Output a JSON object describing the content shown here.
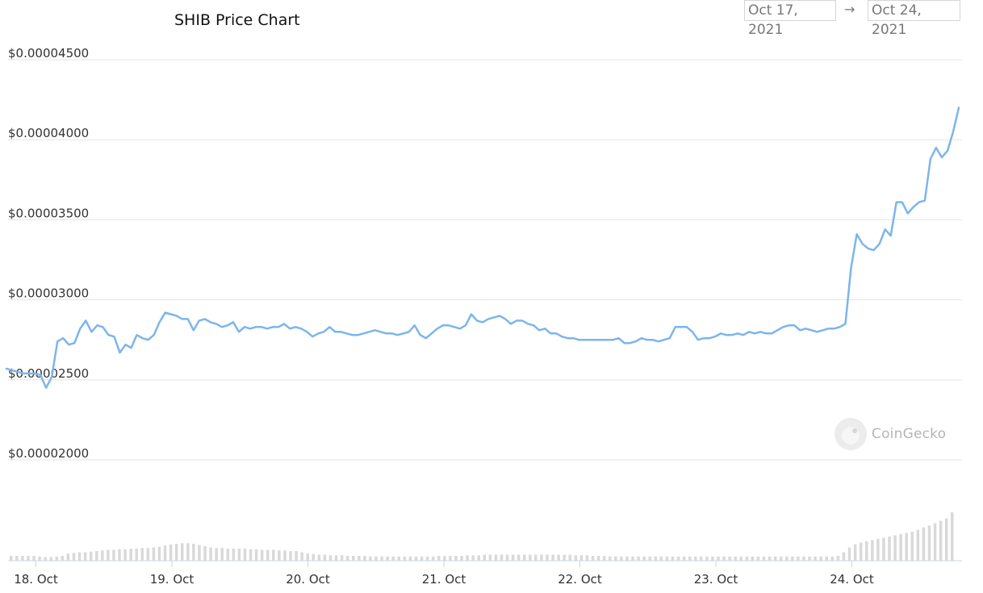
{
  "header": {
    "title": "SHIB Price Chart",
    "range_start": "Oct 17, 2021",
    "range_arrow": "→",
    "range_end": "Oct 24, 2021"
  },
  "watermark": {
    "text": "CoinGecko",
    "icon": "coingecko-logo-icon"
  },
  "colors": {
    "line": "#7cb5ec",
    "grid": "#e6e6e6",
    "volume": "#d9d9d9",
    "axis_text": "#333333"
  },
  "chart_data": {
    "type": "line",
    "title": "SHIB Price Chart",
    "xlabel": "",
    "ylabel": "",
    "y_ticks": [
      2e-05,
      2.5e-05,
      3e-05,
      3.5e-05,
      4e-05,
      4.5e-05
    ],
    "y_tick_labels": [
      "$0.00002000",
      "$0.00002500",
      "$0.00003000",
      "$0.00003500",
      "$0.00004000",
      "$0.00004500"
    ],
    "x_tick_labels": [
      "18. Oct",
      "19. Oct",
      "20. Oct",
      "21. Oct",
      "22. Oct",
      "23. Oct",
      "24. Oct"
    ],
    "x_ticks_day": [
      1,
      2,
      3,
      4,
      5,
      6,
      7
    ],
    "grid": true,
    "series": [
      {
        "points": [
          [
            0.0,
            2.57e-05
          ],
          [
            0.04,
            2.56e-05
          ],
          [
            0.08,
            2.55e-05
          ],
          [
            0.12,
            2.54e-05
          ],
          [
            0.16,
            2.54e-05
          ],
          [
            0.2,
            2.54e-05
          ],
          [
            0.24,
            2.53e-05
          ],
          [
            0.28,
            2.45e-05
          ],
          [
            0.32,
            2.52e-05
          ],
          [
            0.36,
            2.74e-05
          ],
          [
            0.4,
            2.76e-05
          ],
          [
            0.44,
            2.72e-05
          ],
          [
            0.48,
            2.73e-05
          ],
          [
            0.52,
            2.82e-05
          ],
          [
            0.56,
            2.87e-05
          ],
          [
            0.6,
            2.8e-05
          ],
          [
            0.64,
            2.84e-05
          ],
          [
            0.68,
            2.83e-05
          ],
          [
            0.72,
            2.78e-05
          ],
          [
            0.76,
            2.77e-05
          ],
          [
            0.8,
            2.67e-05
          ],
          [
            0.84,
            2.72e-05
          ],
          [
            0.88,
            2.7e-05
          ],
          [
            0.92,
            2.78e-05
          ],
          [
            0.96,
            2.76e-05
          ],
          [
            1.0,
            2.75e-05
          ],
          [
            1.04,
            2.78e-05
          ],
          [
            1.08,
            2.86e-05
          ],
          [
            1.12,
            2.92e-05
          ],
          [
            1.16,
            2.91e-05
          ],
          [
            1.2,
            2.9e-05
          ],
          [
            1.24,
            2.88e-05
          ],
          [
            1.28,
            2.88e-05
          ],
          [
            1.32,
            2.81e-05
          ],
          [
            1.36,
            2.87e-05
          ],
          [
            1.4,
            2.88e-05
          ],
          [
            1.44,
            2.86e-05
          ],
          [
            1.48,
            2.85e-05
          ],
          [
            1.52,
            2.83e-05
          ],
          [
            1.56,
            2.84e-05
          ],
          [
            1.6,
            2.86e-05
          ],
          [
            1.64,
            2.8e-05
          ],
          [
            1.68,
            2.83e-05
          ],
          [
            1.72,
            2.82e-05
          ],
          [
            1.76,
            2.83e-05
          ],
          [
            1.8,
            2.83e-05
          ],
          [
            1.84,
            2.82e-05
          ],
          [
            1.88,
            2.83e-05
          ],
          [
            1.92,
            2.83e-05
          ],
          [
            1.96,
            2.85e-05
          ],
          [
            2.0,
            2.82e-05
          ],
          [
            2.04,
            2.83e-05
          ],
          [
            2.08,
            2.82e-05
          ],
          [
            2.12,
            2.8e-05
          ],
          [
            2.16,
            2.77e-05
          ],
          [
            2.2,
            2.79e-05
          ],
          [
            2.24,
            2.8e-05
          ],
          [
            2.28,
            2.83e-05
          ],
          [
            2.32,
            2.8e-05
          ],
          [
            2.36,
            2.8e-05
          ],
          [
            2.4,
            2.79e-05
          ],
          [
            2.44,
            2.78e-05
          ],
          [
            2.48,
            2.78e-05
          ],
          [
            2.52,
            2.79e-05
          ],
          [
            2.56,
            2.8e-05
          ],
          [
            2.6,
            2.81e-05
          ],
          [
            2.64,
            2.8e-05
          ],
          [
            2.68,
            2.79e-05
          ],
          [
            2.72,
            2.79e-05
          ],
          [
            2.76,
            2.78e-05
          ],
          [
            2.8,
            2.79e-05
          ],
          [
            2.84,
            2.8e-05
          ],
          [
            2.88,
            2.84e-05
          ],
          [
            2.92,
            2.78e-05
          ],
          [
            2.96,
            2.76e-05
          ],
          [
            3.0,
            2.79e-05
          ],
          [
            3.04,
            2.82e-05
          ],
          [
            3.08,
            2.84e-05
          ],
          [
            3.12,
            2.84e-05
          ],
          [
            3.16,
            2.83e-05
          ],
          [
            3.2,
            2.82e-05
          ],
          [
            3.24,
            2.84e-05
          ],
          [
            3.28,
            2.91e-05
          ],
          [
            3.32,
            2.87e-05
          ],
          [
            3.36,
            2.86e-05
          ],
          [
            3.4,
            2.88e-05
          ],
          [
            3.44,
            2.89e-05
          ],
          [
            3.48,
            2.9e-05
          ],
          [
            3.52,
            2.88e-05
          ],
          [
            3.56,
            2.85e-05
          ],
          [
            3.6,
            2.87e-05
          ],
          [
            3.64,
            2.87e-05
          ],
          [
            3.68,
            2.85e-05
          ],
          [
            3.72,
            2.84e-05
          ],
          [
            3.76,
            2.81e-05
          ],
          [
            3.8,
            2.82e-05
          ],
          [
            3.84,
            2.79e-05
          ],
          [
            3.88,
            2.79e-05
          ],
          [
            3.92,
            2.77e-05
          ],
          [
            3.96,
            2.76e-05
          ],
          [
            4.0,
            2.76e-05
          ],
          [
            4.04,
            2.75e-05
          ],
          [
            4.08,
            2.75e-05
          ],
          [
            4.12,
            2.75e-05
          ],
          [
            4.16,
            2.75e-05
          ],
          [
            4.2,
            2.75e-05
          ],
          [
            4.24,
            2.75e-05
          ],
          [
            4.28,
            2.75e-05
          ],
          [
            4.32,
            2.76e-05
          ],
          [
            4.36,
            2.73e-05
          ],
          [
            4.4,
            2.73e-05
          ],
          [
            4.44,
            2.74e-05
          ],
          [
            4.48,
            2.76e-05
          ],
          [
            4.52,
            2.75e-05
          ],
          [
            4.56,
            2.75e-05
          ],
          [
            4.6,
            2.74e-05
          ],
          [
            4.64,
            2.75e-05
          ],
          [
            4.68,
            2.76e-05
          ],
          [
            4.72,
            2.83e-05
          ],
          [
            4.76,
            2.83e-05
          ],
          [
            4.8,
            2.83e-05
          ],
          [
            4.84,
            2.8e-05
          ],
          [
            4.88,
            2.75e-05
          ],
          [
            4.92,
            2.76e-05
          ],
          [
            4.96,
            2.76e-05
          ],
          [
            5.0,
            2.77e-05
          ],
          [
            5.04,
            2.79e-05
          ],
          [
            5.08,
            2.78e-05
          ],
          [
            5.12,
            2.78e-05
          ],
          [
            5.16,
            2.79e-05
          ],
          [
            5.2,
            2.78e-05
          ],
          [
            5.24,
            2.8e-05
          ],
          [
            5.28,
            2.79e-05
          ],
          [
            5.32,
            2.8e-05
          ],
          [
            5.36,
            2.79e-05
          ],
          [
            5.4,
            2.79e-05
          ],
          [
            5.44,
            2.81e-05
          ],
          [
            5.48,
            2.83e-05
          ],
          [
            5.52,
            2.84e-05
          ],
          [
            5.56,
            2.84e-05
          ],
          [
            5.6,
            2.81e-05
          ],
          [
            5.64,
            2.82e-05
          ],
          [
            5.68,
            2.81e-05
          ],
          [
            5.72,
            2.8e-05
          ],
          [
            5.76,
            2.81e-05
          ],
          [
            5.8,
            2.82e-05
          ],
          [
            5.84,
            2.82e-05
          ],
          [
            5.88,
            2.83e-05
          ],
          [
            5.92,
            2.85e-05
          ],
          [
            5.96,
            3.2e-05
          ],
          [
            6.0,
            3.41e-05
          ],
          [
            6.04,
            3.35e-05
          ],
          [
            6.08,
            3.32e-05
          ],
          [
            6.12,
            3.31e-05
          ],
          [
            6.16,
            3.35e-05
          ],
          [
            6.2,
            3.44e-05
          ],
          [
            6.24,
            3.4e-05
          ],
          [
            6.28,
            3.61e-05
          ],
          [
            6.32,
            3.61e-05
          ],
          [
            6.36,
            3.54e-05
          ],
          [
            6.4,
            3.58e-05
          ],
          [
            6.44,
            3.61e-05
          ],
          [
            6.48,
            3.62e-05
          ],
          [
            6.52,
            3.88e-05
          ],
          [
            6.56,
            3.95e-05
          ],
          [
            6.6,
            3.89e-05
          ],
          [
            6.64,
            3.93e-05
          ],
          [
            6.68,
            4.05e-05
          ],
          [
            6.72,
            4.2e-05
          ]
        ]
      }
    ],
    "volume_relative": [
      0.08,
      0.08,
      0.08,
      0.08,
      0.08,
      0.07,
      0.06,
      0.06,
      0.07,
      0.08,
      0.12,
      0.13,
      0.14,
      0.14,
      0.15,
      0.16,
      0.17,
      0.18,
      0.18,
      0.19,
      0.19,
      0.2,
      0.2,
      0.21,
      0.21,
      0.22,
      0.23,
      0.25,
      0.27,
      0.28,
      0.29,
      0.29,
      0.28,
      0.26,
      0.24,
      0.22,
      0.21,
      0.21,
      0.2,
      0.2,
      0.2,
      0.2,
      0.19,
      0.19,
      0.18,
      0.18,
      0.18,
      0.17,
      0.17,
      0.16,
      0.16,
      0.14,
      0.12,
      0.11,
      0.1,
      0.1,
      0.09,
      0.09,
      0.09,
      0.08,
      0.08,
      0.08,
      0.08,
      0.07,
      0.07,
      0.07,
      0.07,
      0.07,
      0.07,
      0.07,
      0.07,
      0.07,
      0.07,
      0.07,
      0.07,
      0.08,
      0.08,
      0.08,
      0.08,
      0.08,
      0.09,
      0.09,
      0.09,
      0.1,
      0.1,
      0.1,
      0.1,
      0.1,
      0.1,
      0.1,
      0.1,
      0.1,
      0.1,
      0.1,
      0.1,
      0.1,
      0.1,
      0.1,
      0.1,
      0.09,
      0.09,
      0.09,
      0.08,
      0.08,
      0.08,
      0.07,
      0.07,
      0.07,
      0.07,
      0.07,
      0.07,
      0.07,
      0.07,
      0.07,
      0.07,
      0.07,
      0.07,
      0.07,
      0.07,
      0.07,
      0.07,
      0.07,
      0.07,
      0.07,
      0.07,
      0.07,
      0.07,
      0.07,
      0.07,
      0.07,
      0.07,
      0.07,
      0.07,
      0.07,
      0.07,
      0.07,
      0.07,
      0.07,
      0.07,
      0.07,
      0.07,
      0.07,
      0.07,
      0.07,
      0.07,
      0.08,
      0.14,
      0.22,
      0.27,
      0.3,
      0.32,
      0.34,
      0.36,
      0.38,
      0.4,
      0.42,
      0.44,
      0.46,
      0.48,
      0.51,
      0.55,
      0.58,
      0.62,
      0.66,
      0.7,
      0.8
    ]
  }
}
